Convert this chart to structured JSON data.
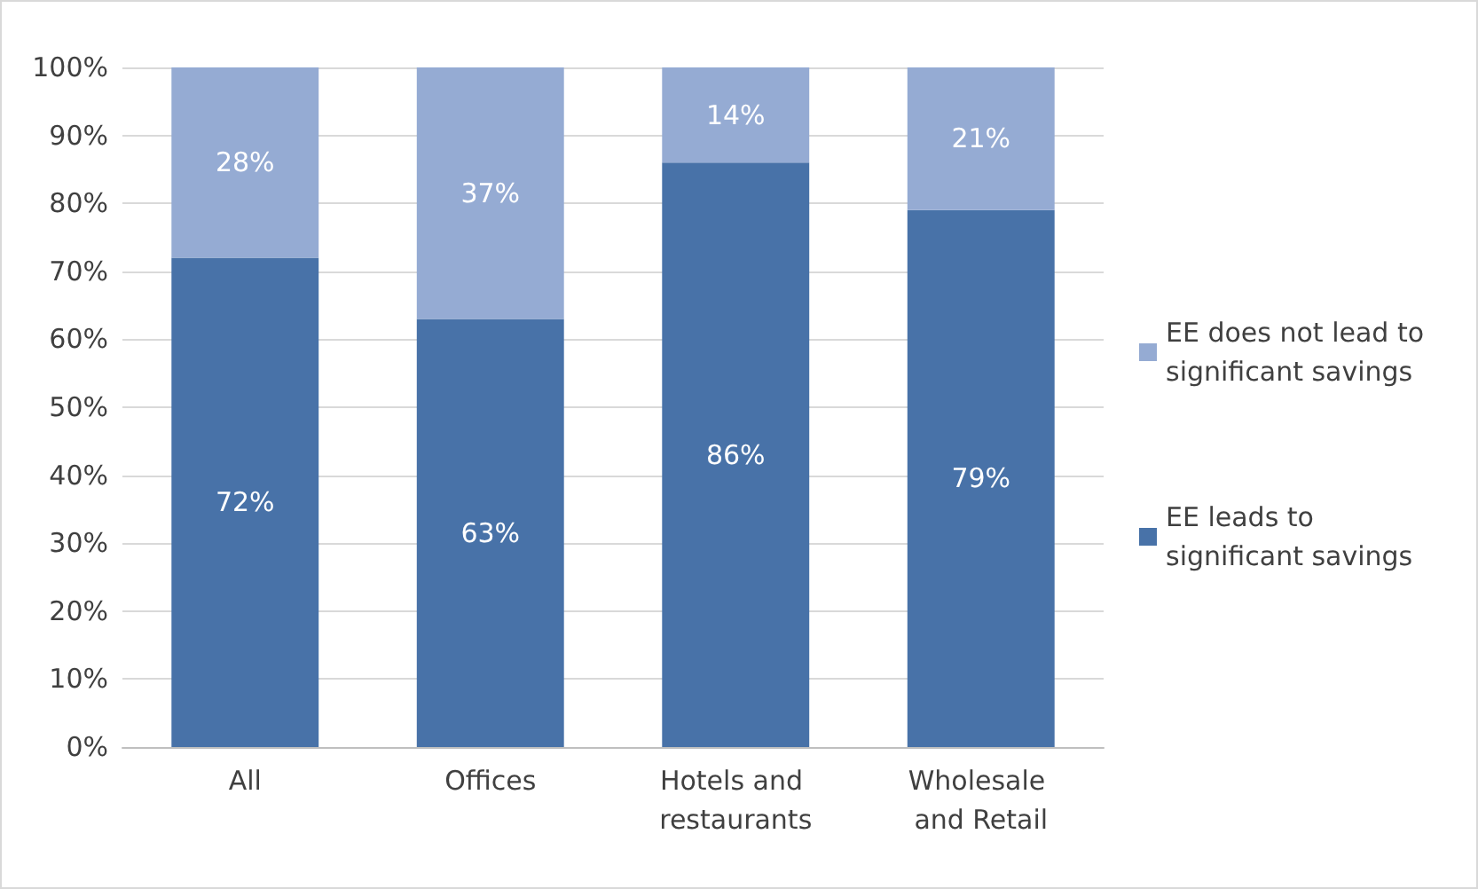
{
  "chart_data": {
    "type": "bar",
    "stacked": true,
    "categories": [
      "All",
      "Offices",
      "Hotels and restaurants",
      "Wholesale and Retail"
    ],
    "series": [
      {
        "name": "EE leads to significant savings",
        "color": "#4872a8",
        "values": [
          72,
          63,
          86,
          79
        ],
        "value_labels": [
          "72%",
          "63%",
          "86%",
          "79%"
        ]
      },
      {
        "name": "EE does not lead to significant savings",
        "color": "#95abd3",
        "values": [
          28,
          37,
          14,
          21
        ],
        "value_labels": [
          "28%",
          "37%",
          "14%",
          "21%"
        ]
      }
    ],
    "ylim": [
      0,
      100
    ],
    "yticks": [
      {
        "value": 0,
        "label": "0%"
      },
      {
        "value": 10,
        "label": "10%"
      },
      {
        "value": 20,
        "label": "20%"
      },
      {
        "value": 30,
        "label": "30%"
      },
      {
        "value": 40,
        "label": "40%"
      },
      {
        "value": 50,
        "label": "50%"
      },
      {
        "value": 60,
        "label": "60%"
      },
      {
        "value": 70,
        "label": "70%"
      },
      {
        "value": 80,
        "label": "80%"
      },
      {
        "value": 90,
        "label": "90%"
      },
      {
        "value": 100,
        "label": "100%"
      }
    ],
    "grid": "y",
    "legend": "right"
  }
}
